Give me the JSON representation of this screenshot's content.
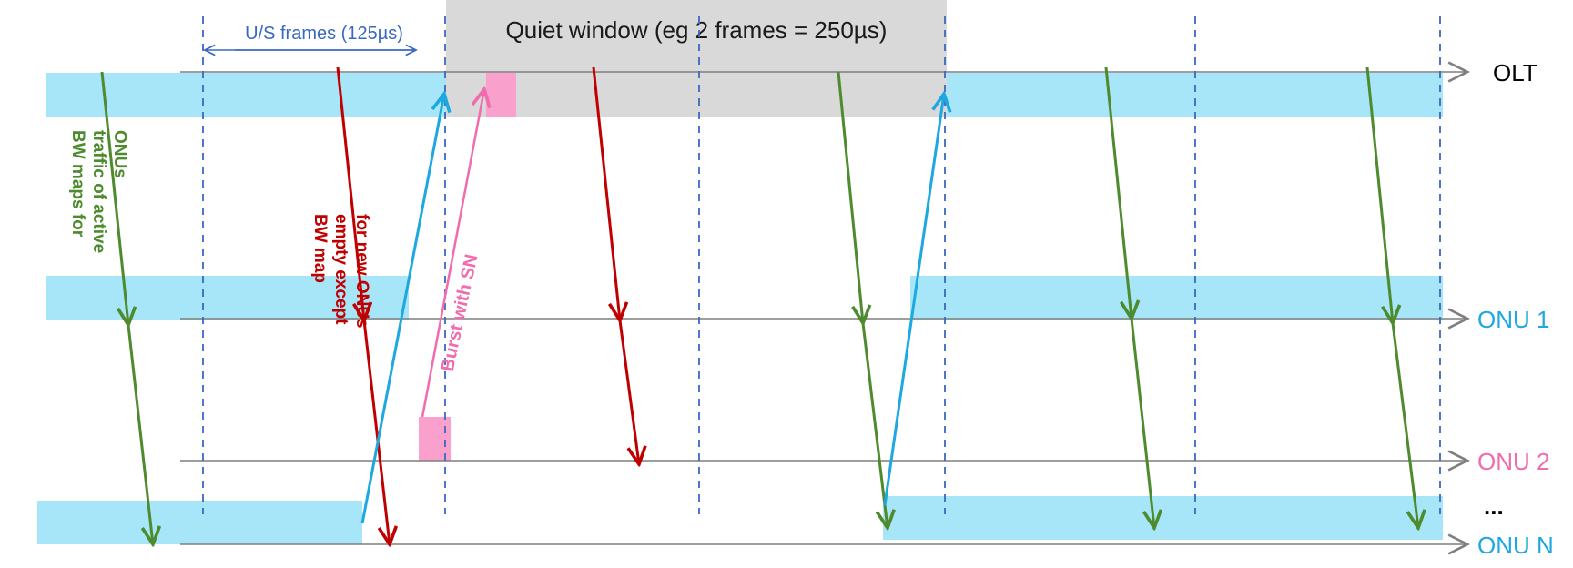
{
  "title": "Quiet window (eg 2 frames = 250µs)",
  "frame_label": "U/S frames (125µs)",
  "rows": [
    {
      "id": "olt",
      "label": "OLT",
      "color": "#000000"
    },
    {
      "id": "onu1",
      "label": "ONU 1",
      "color": "#1EA8E0"
    },
    {
      "id": "onu2",
      "label": "ONU 2",
      "color": "#F06CAE"
    },
    {
      "id": "onun",
      "label": "ONU N",
      "color": "#1EA8E0"
    }
  ],
  "ellipsis": "...",
  "annotations": {
    "bw_active_line1": "BW maps for",
    "bw_active_line2": "traffic of active",
    "bw_active_line3": "ONUs",
    "bw_empty_line1": "BW map",
    "bw_empty_line2": "empty except",
    "bw_empty_line3": "for new ONUs",
    "burst_sn": "Burst with SN"
  },
  "colors": {
    "upstream_band": "#A6E6F8",
    "quiet_window": "#D9D9D9",
    "sn_burst": "#F9A0CC",
    "frame_boundary": "#3A68C0",
    "bw_map_active": "#4E8B2E",
    "bw_map_empty": "#C00000",
    "upstream_arrow": "#1EA8E0",
    "burst_arrow": "#F06CAE",
    "timeline": "#7F7F7F"
  }
}
